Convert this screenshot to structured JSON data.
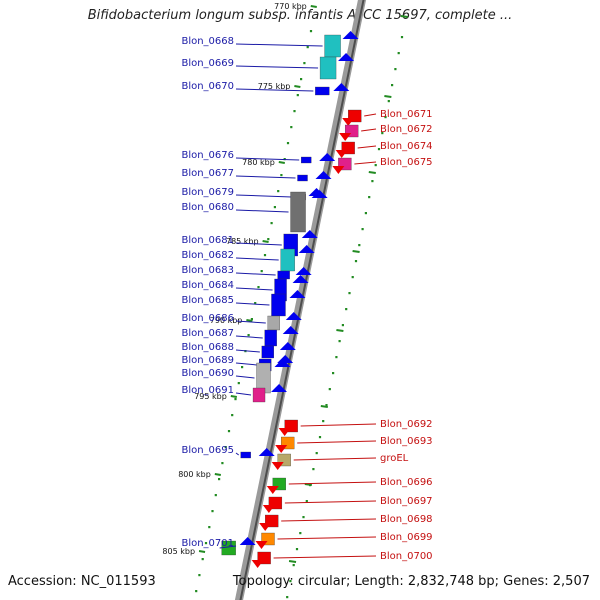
{
  "title": "Bifidobacterium longum subsp. infantis ATCC 15697, complete ...",
  "accession": "Accession: NC_011593",
  "summary": "Topology: circular; Length: 2,832,748 bp; Genes: 2,507",
  "colors": {
    "backbone": "#808080",
    "forward_gene": "#0000ee",
    "reverse_gene": "#ee0000",
    "forward_label": "#1a1aa6",
    "reverse_label": "#c41010",
    "tick": "#228b22"
  },
  "ticks": [
    "770 kbp",
    "775 kbp",
    "780 kbp",
    "785 kbp",
    "790 kbp",
    "795 kbp",
    "800 kbp",
    "805 kbp"
  ],
  "forward_genes": [
    "Blon_0668",
    "Blon_0669",
    "Blon_0670",
    "Blon_0676",
    "Blon_0677",
    "Blon_0679",
    "Blon_0680",
    "Blon_0681",
    "Blon_0682",
    "Blon_0683",
    "Blon_0684",
    "Blon_0685",
    "Blon_0686",
    "Blon_0687",
    "Blon_0688",
    "Blon_0689",
    "Blon_0690",
    "Blon_0691",
    "Blon_0695",
    "Blon_0701"
  ],
  "reverse_genes": [
    "Blon_0671",
    "Blon_0672",
    "Blon_0674",
    "Blon_0675",
    "Blon_0692",
    "Blon_0693",
    "groEL",
    "Blon_0696",
    "Blon_0697",
    "Blon_0698",
    "Blon_0699",
    "Blon_0700"
  ]
}
